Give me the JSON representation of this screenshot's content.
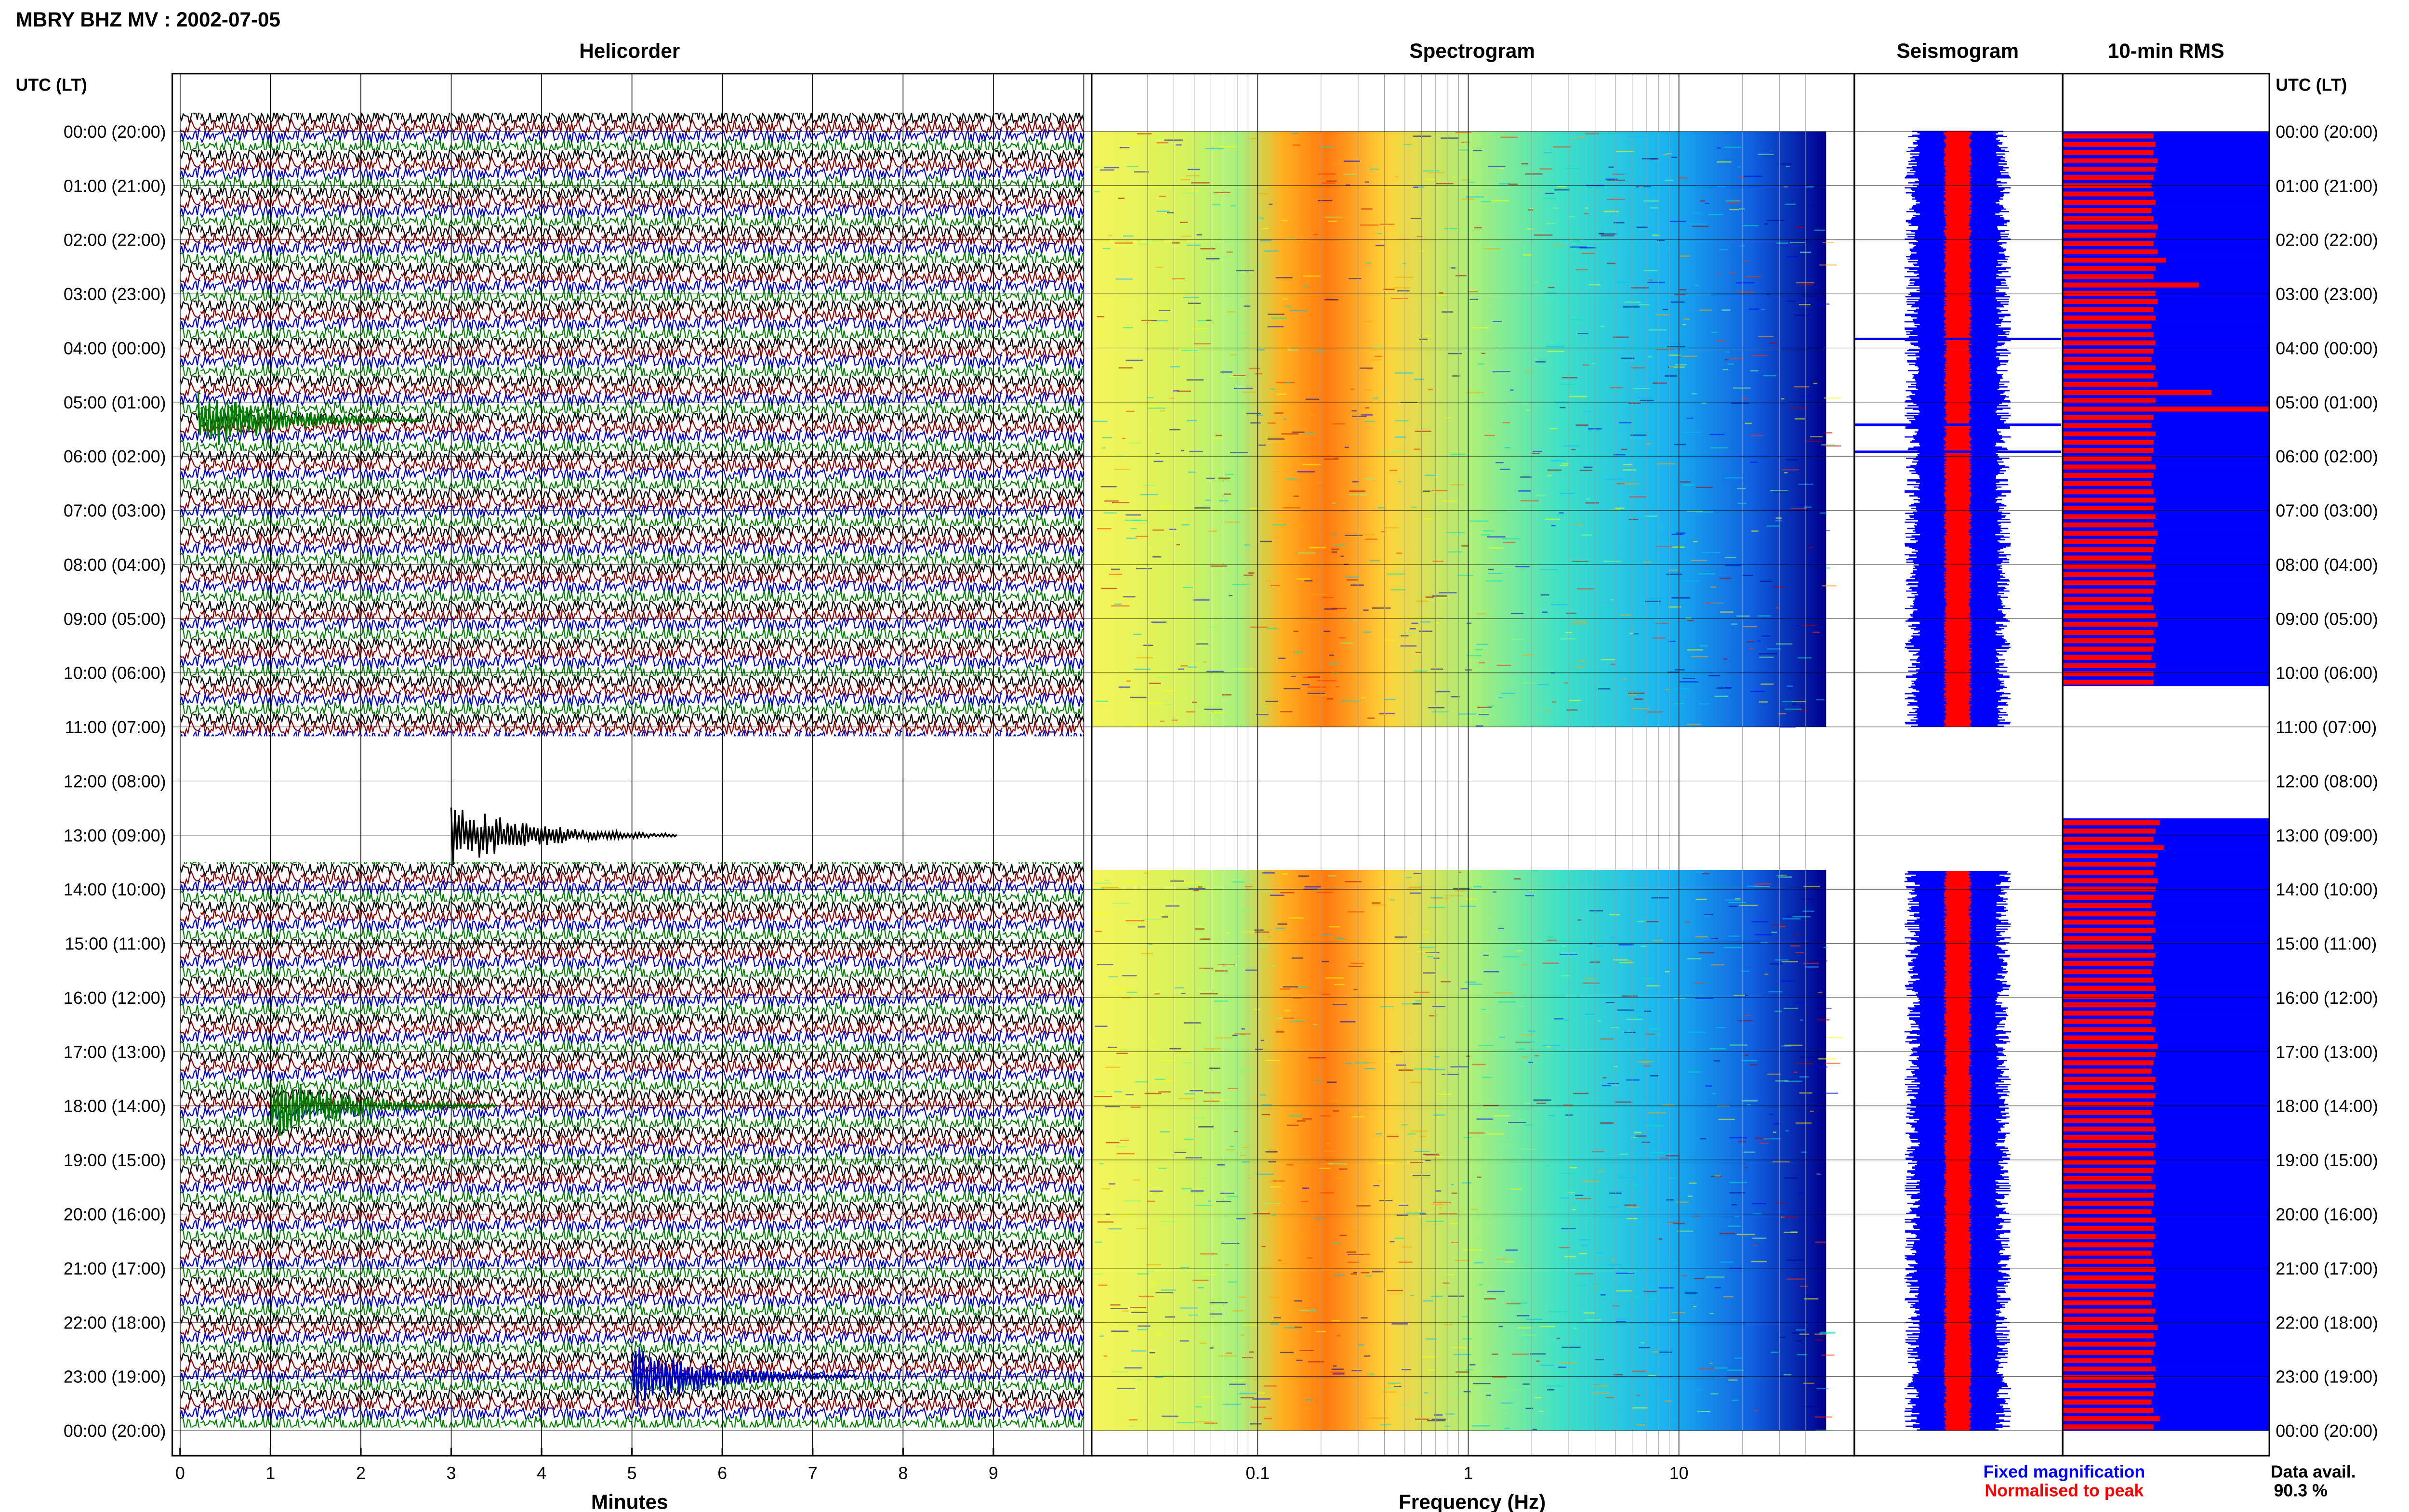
{
  "figure_title": "MBRY BHZ MV : 2002-07-05",
  "panels": {
    "helicorder": "Helicorder",
    "spectrogram": "Spectrogram",
    "seismogram": "Seismogram",
    "rms": "10-min RMS"
  },
  "time_axis_header": "UTC (LT)",
  "time_labels": [
    "00:00 (20:00)",
    "01:00 (21:00)",
    "02:00 (22:00)",
    "03:00 (23:00)",
    "04:00 (00:00)",
    "05:00 (01:00)",
    "06:00 (02:00)",
    "07:00 (03:00)",
    "08:00 (04:00)",
    "09:00 (05:00)",
    "10:00 (06:00)",
    "11:00 (07:00)",
    "12:00 (08:00)",
    "13:00 (09:00)",
    "14:00 (10:00)",
    "15:00 (11:00)",
    "16:00 (12:00)",
    "17:00 (13:00)",
    "18:00 (14:00)",
    "19:00 (15:00)",
    "20:00 (16:00)",
    "21:00 (17:00)",
    "22:00 (18:00)",
    "23:00 (19:00)",
    "00:00 (20:00)"
  ],
  "legend": {
    "fixed": "Fixed magnification",
    "normalised": "Normalised to peak",
    "fixed_color": "#0000ff",
    "normalised_color": "#ff0000"
  },
  "data_avail": {
    "label": "Data avail.",
    "value": "90.3 %"
  },
  "chart_data": [
    {
      "type": "line",
      "title": "Helicorder",
      "xlabel": "Minutes",
      "x_ticks": [
        "0",
        "1",
        "2",
        "3",
        "4",
        "5",
        "6",
        "7",
        "8",
        "9"
      ],
      "xlim": [
        0,
        10
      ],
      "trace_colors": [
        "#000000",
        "#8b0000",
        "#0000cd",
        "#008000"
      ],
      "data_gaps_utc": [
        [
          "11:00",
          "13:40"
        ]
      ],
      "events": [
        {
          "time_utc": "05:20",
          "minute": 0.2,
          "color": "green"
        },
        {
          "time_utc": "13:00",
          "minute": 3.0,
          "color": "black"
        },
        {
          "time_utc": "18:00",
          "minute": 1.0,
          "color": "green"
        },
        {
          "time_utc": "23:00",
          "minute": 5.0,
          "color": "blue"
        }
      ]
    },
    {
      "type": "heatmap",
      "title": "Spectrogram",
      "xlabel": "Frequency (Hz)",
      "x_scale": "log",
      "x_ticks": [
        "0.1",
        "1",
        "10"
      ],
      "xlim": [
        0.02,
        50
      ],
      "colormap": [
        "#00008b",
        "#0000ff",
        "#00bfff",
        "#00e5c0",
        "#7fff7f",
        "#ffff00",
        "#ffa500",
        "#ff3300",
        "#b30000"
      ],
      "peak_band_hz": [
        0.2,
        0.5
      ]
    },
    {
      "type": "area",
      "title": "Seismogram",
      "series": [
        {
          "name": "Fixed magnification",
          "color": "#0000ff"
        },
        {
          "name": "Normalised to peak",
          "color": "#ff0000"
        }
      ],
      "peaks_utc": [
        "03:50",
        "05:25",
        "05:55"
      ]
    },
    {
      "type": "bar",
      "title": "10-min RMS",
      "series": [
        {
          "name": "Fixed magnification",
          "color": "#0000ff"
        },
        {
          "name": "Normalised to peak",
          "color": "#ff0000"
        }
      ],
      "normalised_fraction": [
        0.44,
        0.45,
        0.44,
        0.46,
        0.45,
        0.44,
        0.43,
        0.44,
        0.45,
        0.43,
        0.44,
        0.46,
        0.45,
        0.44,
        0.46,
        0.5,
        0.45,
        0.44,
        0.66,
        0.45,
        0.46,
        0.44,
        0.45,
        0.43,
        0.44,
        0.45,
        0.44,
        0.43,
        0.45,
        0.44,
        0.46,
        0.72,
        0.45,
        1.0,
        0.44,
        0.43,
        0.45,
        0.44,
        0.44,
        0.43,
        0.45,
        0.44,
        0.43,
        0.44,
        0.45,
        0.44,
        0.45,
        0.44,
        0.46,
        0.45,
        0.44,
        0.43,
        0.45,
        0.44,
        0.45,
        0.44,
        0.43,
        0.44,
        0.45,
        0.46,
        0.44,
        0.45,
        0.44,
        0.43,
        0.45,
        0.44,
        0.44,
        null,
        null,
        null,
        null,
        null,
        null,
        null,
        null,
        null,
        null,
        null,
        null,
        null,
        null,
        null,
        null,
        0.47,
        0.45,
        0.44,
        0.49,
        0.46,
        0.45,
        0.44,
        0.46,
        0.45,
        0.44,
        0.43,
        0.45,
        0.44,
        0.45,
        0.43,
        0.44,
        0.45,
        0.44,
        0.43,
        0.44,
        0.45,
        0.44,
        0.45,
        0.44,
        0.43,
        0.45,
        0.44,
        0.46,
        0.45,
        0.44,
        0.43,
        0.45,
        0.44,
        0.45,
        0.44,
        0.43,
        0.44,
        0.45,
        0.44,
        0.45,
        0.44,
        0.45,
        0.44,
        0.43,
        0.45,
        0.44,
        0.44,
        0.43,
        0.45,
        0.44,
        0.45,
        0.44,
        0.43,
        0.44,
        0.45,
        0.44,
        0.45,
        0.44,
        0.43,
        0.45,
        0.44,
        0.46,
        0.44,
        0.45,
        0.44,
        0.43,
        0.45,
        0.44,
        0.45,
        0.44,
        0.43,
        0.44,
        0.47,
        0.44
      ]
    }
  ]
}
